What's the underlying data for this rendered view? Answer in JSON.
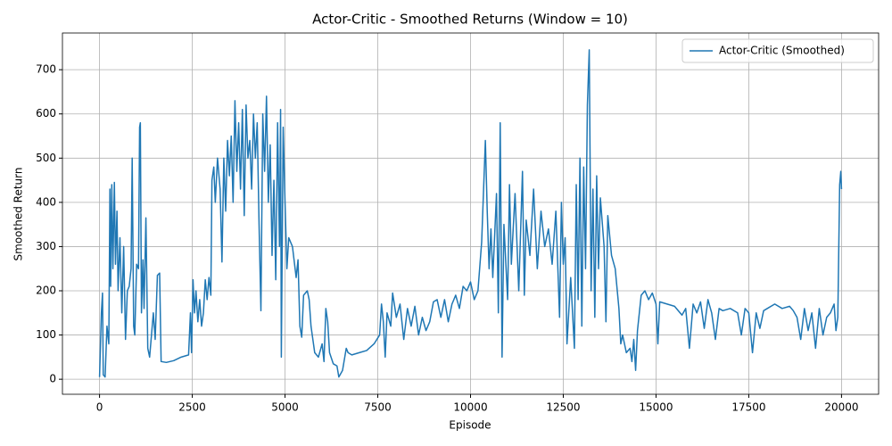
{
  "chart_data": {
    "type": "line",
    "title": "Actor-Critic - Smoothed Returns (Window = 10)",
    "xlabel": "Episode",
    "ylabel": "Smoothed Return",
    "x": [
      0,
      50,
      80,
      100,
      150,
      200,
      250,
      280,
      300,
      330,
      360,
      400,
      430,
      470,
      500,
      550,
      600,
      650,
      700,
      750,
      800,
      850,
      880,
      920,
      950,
      1000,
      1050,
      1080,
      1100,
      1130,
      1170,
      1200,
      1250,
      1300,
      1350,
      1400,
      1450,
      1500,
      1560,
      1620,
      1660,
      1800,
      2000,
      2200,
      2400,
      2450,
      2480,
      2520,
      2560,
      2600,
      2650,
      2700,
      2750,
      2800,
      2850,
      2900,
      2950,
      3000,
      3030,
      3080,
      3120,
      3180,
      3250,
      3300,
      3350,
      3400,
      3450,
      3500,
      3550,
      3600,
      3650,
      3700,
      3750,
      3800,
      3850,
      3900,
      3950,
      4000,
      4050,
      4100,
      4150,
      4200,
      4250,
      4300,
      4350,
      4400,
      4450,
      4500,
      4550,
      4600,
      4650,
      4700,
      4750,
      4800,
      4850,
      4880,
      4900,
      4950,
      5000,
      5050,
      5100,
      5200,
      5300,
      5350,
      5400,
      5450,
      5500,
      5600,
      5650,
      5700,
      5800,
      5900,
      6000,
      6050,
      6100,
      6150,
      6200,
      6300,
      6400,
      6450,
      6550,
      6650,
      6700,
      6800,
      7000,
      7200,
      7400,
      7550,
      7600,
      7650,
      7700,
      7750,
      7850,
      7900,
      8000,
      8100,
      8200,
      8300,
      8400,
      8500,
      8600,
      8700,
      8800,
      8900,
      9000,
      9100,
      9200,
      9300,
      9400,
      9500,
      9600,
      9700,
      9800,
      9900,
      10000,
      10100,
      10200,
      10300,
      10400,
      10450,
      10500,
      10550,
      10600,
      10700,
      10750,
      10800,
      10850,
      10900,
      11000,
      11050,
      11100,
      11200,
      11300,
      11400,
      11450,
      11500,
      11600,
      11700,
      11800,
      11900,
      12000,
      12100,
      12200,
      12300,
      12400,
      12450,
      12500,
      12550,
      12600,
      12700,
      12800,
      12850,
      12900,
      12950,
      13000,
      13050,
      13100,
      13150,
      13200,
      13250,
      13300,
      13350,
      13400,
      13450,
      13500,
      13600,
      13650,
      13700,
      13800,
      13900,
      14000,
      14050,
      14100,
      14200,
      14300,
      14350,
      14400,
      14450,
      14500,
      14550,
      14600,
      14700,
      14800,
      14900,
      15000,
      15050,
      15100,
      15300,
      15500,
      15700,
      15800,
      15900,
      16000,
      16100,
      16200,
      16300,
      16400,
      16500,
      16600,
      16700,
      16800,
      17000,
      17200,
      17300,
      17400,
      17500,
      17600,
      17700,
      17800,
      17900,
      18000,
      18200,
      18400,
      18600,
      18700,
      18800,
      18900,
      19000,
      19100,
      19200,
      19300,
      19400,
      19500,
      19600,
      19700,
      19800,
      19850,
      19900,
      19950,
      19980,
      20000
    ],
    "series": [
      {
        "name": "Actor-Critic (Smoothed)",
        "color": "#1f77b4",
        "values": [
          5,
          150,
          195,
          10,
          5,
          120,
          80,
          430,
          210,
          440,
          250,
          445,
          260,
          380,
          200,
          320,
          150,
          300,
          90,
          200,
          210,
          250,
          500,
          120,
          100,
          260,
          250,
          570,
          580,
          150,
          270,
          160,
          365,
          70,
          50,
          100,
          150,
          90,
          235,
          240,
          40,
          38,
          42,
          50,
          55,
          150,
          60,
          225,
          150,
          200,
          130,
          180,
          120,
          150,
          225,
          180,
          230,
          190,
          450,
          480,
          400,
          500,
          430,
          265,
          500,
          380,
          540,
          460,
          550,
          400,
          630,
          470,
          580,
          430,
          610,
          370,
          620,
          500,
          540,
          430,
          600,
          500,
          580,
          350,
          155,
          600,
          470,
          640,
          400,
          530,
          280,
          450,
          225,
          580,
          300,
          610,
          50,
          570,
          400,
          250,
          320,
          300,
          230,
          270,
          120,
          95,
          190,
          200,
          180,
          120,
          60,
          50,
          80,
          40,
          160,
          130,
          60,
          35,
          30,
          5,
          20,
          70,
          60,
          55,
          60,
          65,
          80,
          100,
          170,
          130,
          50,
          150,
          120,
          195,
          140,
          170,
          90,
          160,
          120,
          165,
          100,
          140,
          110,
          130,
          175,
          180,
          140,
          180,
          130,
          170,
          190,
          160,
          210,
          200,
          220,
          180,
          200,
          310,
          540,
          380,
          250,
          340,
          230,
          420,
          150,
          580,
          50,
          350,
          180,
          440,
          260,
          420,
          200,
          470,
          190,
          360,
          280,
          430,
          250,
          380,
          300,
          340,
          260,
          380,
          140,
          400,
          260,
          320,
          80,
          230,
          70,
          440,
          180,
          500,
          120,
          480,
          250,
          620,
          745,
          200,
          430,
          140,
          460,
          250,
          410,
          300,
          130,
          370,
          280,
          250,
          160,
          80,
          100,
          60,
          70,
          40,
          90,
          20,
          110,
          150,
          190,
          200,
          180,
          195,
          170,
          80,
          175,
          170,
          165,
          145,
          160,
          70,
          170,
          150,
          175,
          115,
          180,
          150,
          90,
          160,
          155,
          160,
          150,
          100,
          160,
          150,
          60,
          150,
          115,
          155,
          160,
          170,
          160,
          165,
          155,
          140,
          90,
          160,
          110,
          150,
          70,
          160,
          100,
          140,
          150,
          170,
          110,
          140,
          440,
          470,
          430
        ]
      }
    ],
    "xlim": [
      -1000,
      21000
    ],
    "ylim": [
      -34,
      783
    ],
    "xticks": [
      0,
      2500,
      5000,
      7500,
      10000,
      12500,
      15000,
      17500,
      20000
    ],
    "yticks": [
      0,
      100,
      200,
      300,
      400,
      500,
      600,
      700
    ],
    "grid": true,
    "legend": "upper right"
  }
}
